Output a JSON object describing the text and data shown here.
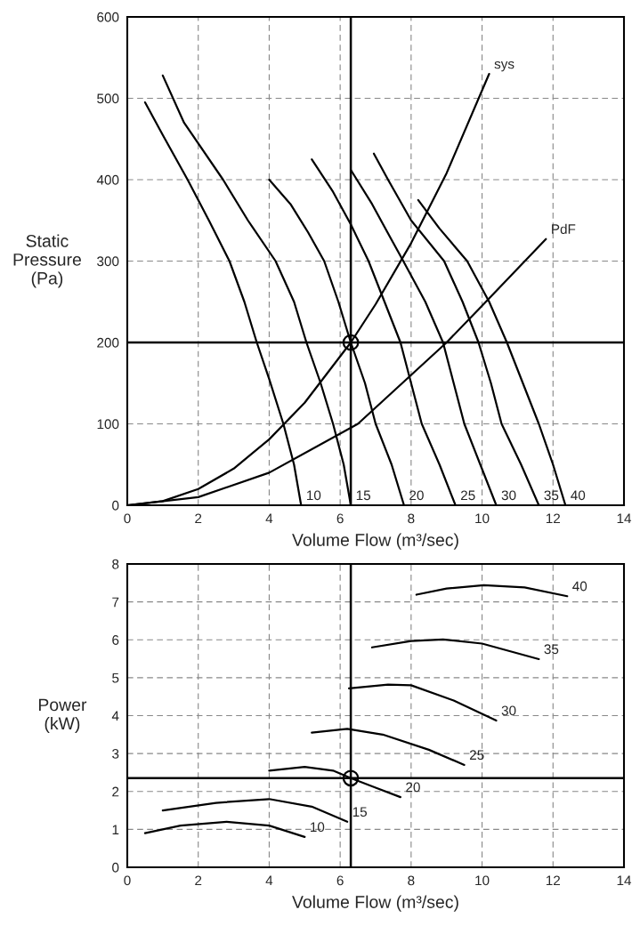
{
  "chart_data": [
    {
      "type": "line",
      "xlabel": "Volume Flow (m³/sec)",
      "ylabel": "Static\nPressure\n(Pa)",
      "xlim": [
        0,
        14
      ],
      "ylim": [
        0,
        600
      ],
      "xticks": [
        0,
        2,
        4,
        6,
        8,
        10,
        12,
        14
      ],
      "yticks": [
        0,
        100,
        200,
        300,
        400,
        500,
        600
      ],
      "grid": true,
      "line_style": "solid",
      "ref_lines": [
        {
          "axis": "x",
          "value": 6.3,
          "color": "#000000",
          "line_style": "solid"
        },
        {
          "axis": "y",
          "value": 200,
          "color": "#000000",
          "line_style": "solid"
        }
      ],
      "series": [
        {
          "name": "10",
          "color": "#000000",
          "x": [
            0.5,
            1.0,
            1.7,
            2.3,
            2.88,
            3.3,
            3.65,
            4.0,
            4.4,
            4.7,
            4.9
          ],
          "values": [
            495,
            455,
            400,
            350,
            300,
            250,
            200,
            155,
            100,
            50,
            0
          ]
        },
        {
          "name": "15",
          "color": "#000000",
          "x": [
            1.0,
            1.6,
            2.7,
            3.4,
            4.18,
            4.7,
            5.05,
            5.45,
            5.8,
            6.1,
            6.3
          ],
          "values": [
            528,
            470,
            400,
            350,
            300,
            250,
            200,
            150,
            100,
            50,
            0
          ]
        },
        {
          "name": "20",
          "color": "#000000",
          "x": [
            4.0,
            4.6,
            5.1,
            5.55,
            5.95,
            6.3,
            6.7,
            7.0,
            7.45,
            7.8
          ],
          "values": [
            400,
            370,
            335,
            300,
            250,
            200,
            150,
            100,
            50,
            0
          ]
        },
        {
          "name": "25",
          "color": "#000000",
          "x": [
            5.2,
            5.8,
            6.3,
            6.8,
            7.25,
            7.7,
            8.0,
            8.3,
            8.8,
            9.25
          ],
          "values": [
            425,
            385,
            345,
            300,
            250,
            200,
            150,
            100,
            50,
            0
          ]
        },
        {
          "name": "30",
          "color": "#000000",
          "x": [
            6.3,
            6.9,
            7.4,
            7.78,
            8.4,
            8.9,
            9.2,
            9.5,
            9.95,
            10.4
          ],
          "values": [
            412,
            370,
            330,
            300,
            250,
            200,
            150,
            100,
            50,
            0
          ]
        },
        {
          "name": "35",
          "color": "#000000",
          "x": [
            6.95,
            7.35,
            8.0,
            8.93,
            9.45,
            9.9,
            10.25,
            10.55,
            11.1,
            11.6
          ],
          "values": [
            432,
            400,
            350,
            300,
            250,
            200,
            150,
            100,
            50,
            0
          ]
        },
        {
          "name": "40",
          "color": "#000000",
          "x": [
            8.2,
            8.8,
            9.58,
            10.2,
            10.7,
            11.15,
            11.6,
            12.0,
            12.35
          ],
          "values": [
            375,
            340,
            300,
            250,
            200,
            150,
            100,
            50,
            0
          ]
        },
        {
          "name": "sys",
          "color": "#000000",
          "x": [
            0,
            1,
            2,
            3,
            4,
            5,
            6.3,
            7,
            8,
            9,
            10.2
          ],
          "values": [
            0,
            5,
            20,
            45,
            81,
            126,
            200,
            247,
            322,
            408,
            530
          ]
        },
        {
          "name": "PdF",
          "color": "#000000",
          "x": [
            0,
            2,
            4,
            6.5,
            9,
            10,
            11.8
          ],
          "values": [
            0,
            10,
            40,
            100,
            200,
            245,
            327
          ]
        },
        {
          "type": "scatter",
          "color": "#000000",
          "x": [
            6.3
          ],
          "values": [
            200
          ]
        }
      ]
    },
    {
      "type": "line",
      "xlabel": "Volume Flow (m³/sec)",
      "ylabel": "Power\n(kW)",
      "xlim": [
        0,
        14
      ],
      "ylim": [
        0,
        8
      ],
      "xticks": [
        0,
        2,
        4,
        6,
        8,
        10,
        12,
        14
      ],
      "yticks": [
        0,
        1,
        2,
        3,
        4,
        5,
        6,
        7,
        8
      ],
      "grid": true,
      "line_style": "solid",
      "ref_lines": [
        {
          "axis": "x",
          "value": 6.3,
          "color": "#000000",
          "line_style": "solid"
        },
        {
          "axis": "y",
          "value": 2.35,
          "color": "#000000",
          "line_style": "solid"
        }
      ],
      "series": [
        {
          "name": "10",
          "color": "#000000",
          "x": [
            0.5,
            1.5,
            2.8,
            4.0,
            5.0
          ],
          "values": [
            0.9,
            1.1,
            1.2,
            1.1,
            0.8
          ]
        },
        {
          "name": "15",
          "color": "#000000",
          "x": [
            1.0,
            2.5,
            4.0,
            5.2,
            6.2
          ],
          "values": [
            1.5,
            1.7,
            1.8,
            1.6,
            1.2
          ]
        },
        {
          "name": "20",
          "color": "#000000",
          "x": [
            4.0,
            5.0,
            5.8,
            6.3,
            7.0,
            7.7
          ],
          "values": [
            2.55,
            2.65,
            2.55,
            2.35,
            2.1,
            1.85
          ]
        },
        {
          "name": "25",
          "color": "#000000",
          "x": [
            5.2,
            6.2,
            7.2,
            8.5,
            9.5
          ],
          "values": [
            3.55,
            3.65,
            3.5,
            3.1,
            2.7
          ]
        },
        {
          "name": "30",
          "color": "#000000",
          "x": [
            6.25,
            7.35,
            8.0,
            9.2,
            10.4
          ],
          "values": [
            4.72,
            4.82,
            4.8,
            4.4,
            3.87
          ]
        },
        {
          "name": "35",
          "color": "#000000",
          "x": [
            6.9,
            8.0,
            8.9,
            10.0,
            11.6
          ],
          "values": [
            5.8,
            5.97,
            6.01,
            5.9,
            5.49
          ]
        },
        {
          "name": "40",
          "color": "#000000",
          "x": [
            8.15,
            9.0,
            10.05,
            11.2,
            12.4
          ],
          "values": [
            7.19,
            7.35,
            7.44,
            7.38,
            7.15
          ]
        },
        {
          "type": "scatter",
          "color": "#000000",
          "x": [
            6.3
          ],
          "values": [
            2.35
          ]
        }
      ]
    }
  ]
}
